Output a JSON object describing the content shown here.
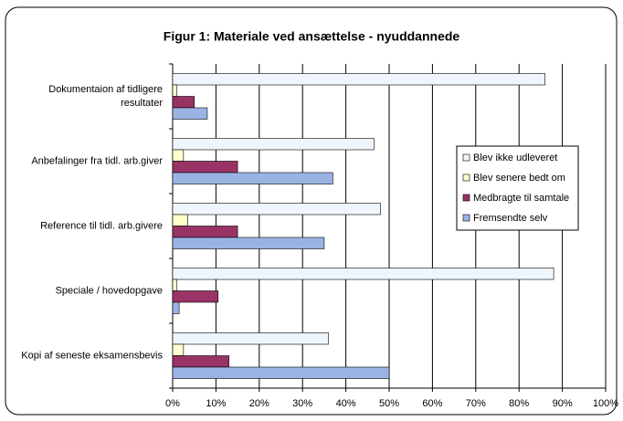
{
  "chart_data": {
    "type": "hbar",
    "title": "Figur 1: Materiale ved ansættelse - nyuddannede",
    "categories": [
      "Dokumentaion af tidligere resultater",
      "Anbefalinger fra tidl. arb.giver",
      "Reference til tidl. arb.givere",
      "Speciale / hovedopgave",
      "Kopi af seneste eksamensbevis"
    ],
    "series": [
      {
        "name": "Blev ikke udleveret",
        "color": "#eef5fc",
        "values": [
          86,
          46.5,
          48,
          88,
          36
        ]
      },
      {
        "name": "Blev senere bedt om",
        "color": "#ffffcc",
        "values": [
          1,
          2.5,
          3.5,
          1,
          2.5
        ]
      },
      {
        "name": "Medbragte til samtale",
        "color": "#993366",
        "values": [
          5,
          15,
          15,
          10.5,
          13
        ]
      },
      {
        "name": "Fremsendte selv",
        "color": "#99b4e3",
        "values": [
          8,
          37,
          35,
          1.5,
          50
        ]
      }
    ],
    "xlim": [
      0,
      100
    ],
    "xticks": [
      {
        "value": 0,
        "label": "0%"
      },
      {
        "value": 10,
        "label": "10%"
      },
      {
        "value": 20,
        "label": "20%"
      },
      {
        "value": 30,
        "label": "30%"
      },
      {
        "value": 40,
        "label": "40%"
      },
      {
        "value": 50,
        "label": "50%"
      },
      {
        "value": 60,
        "label": "60%"
      },
      {
        "value": 70,
        "label": "70%"
      },
      {
        "value": 80,
        "label": "80%"
      },
      {
        "value": 90,
        "label": "90%"
      },
      {
        "value": 100,
        "label": "100%"
      }
    ],
    "grid": true,
    "legend": "right"
  }
}
